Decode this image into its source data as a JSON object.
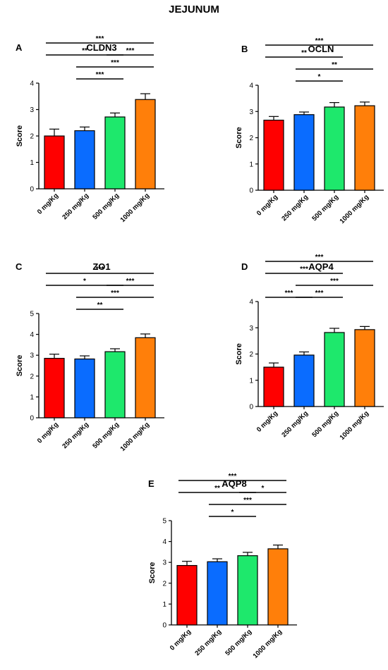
{
  "figure_title": "JEJUNUM",
  "colors": [
    "#ff0000",
    "#0a6cff",
    "#1ee86c",
    "#ff7f0a"
  ],
  "chart_data": [
    {
      "letter": "A",
      "title": "CLDN3",
      "type": "bar",
      "categories": [
        "0 mg/Kg",
        "250 mg/Kg",
        "500 mg/Kg",
        "1000 mg/Kg"
      ],
      "values": [
        2.0,
        2.2,
        2.72,
        3.38
      ],
      "errors": [
        0.26,
        0.14,
        0.15,
        0.22
      ],
      "ylabel": "Score",
      "ylim": [
        0,
        4
      ],
      "yticks": [
        0,
        1,
        2,
        3,
        4
      ],
      "significance": [
        {
          "from": 0,
          "to": 3,
          "level": 0,
          "label": "***"
        },
        {
          "from": 0,
          "to": 2,
          "level": 1,
          "label": "**"
        },
        {
          "from": 2,
          "to": 3,
          "level": 1,
          "label": "***"
        },
        {
          "from": 1,
          "to": 3,
          "level": 2,
          "label": "***"
        },
        {
          "from": 1,
          "to": 2,
          "level": 3,
          "label": "***"
        }
      ]
    },
    {
      "letter": "B",
      "title": "OCLN",
      "type": "bar",
      "categories": [
        "0 mg/Kg",
        "250 mg/Kg",
        "500 mg/Kg",
        "1000 mg/Kg"
      ],
      "values": [
        2.67,
        2.88,
        3.17,
        3.22
      ],
      "errors": [
        0.14,
        0.1,
        0.17,
        0.14
      ],
      "ylabel": "Score",
      "ylim": [
        0,
        4
      ],
      "yticks": [
        0,
        1,
        2,
        3,
        4
      ],
      "significance": [
        {
          "from": 0,
          "to": 3,
          "level": 0,
          "label": "***"
        },
        {
          "from": 0,
          "to": 2,
          "level": 1,
          "label": "**"
        },
        {
          "from": 1,
          "to": 3,
          "level": 2,
          "label": "**"
        },
        {
          "from": 1,
          "to": 2,
          "level": 3,
          "label": "*"
        }
      ]
    },
    {
      "letter": "C",
      "title": "ZO1",
      "type": "bar",
      "categories": [
        "0 mg/Kg",
        "250 mg/Kg",
        "500 mg/Kg",
        "1000 mg/Kg"
      ],
      "values": [
        2.85,
        2.82,
        3.17,
        3.84
      ],
      "errors": [
        0.2,
        0.15,
        0.14,
        0.18
      ],
      "ylabel": "Score",
      "ylim": [
        0,
        5
      ],
      "yticks": [
        0,
        1,
        2,
        3,
        4,
        5
      ],
      "significance": [
        {
          "from": 0,
          "to": 3,
          "level": 0,
          "label": "***"
        },
        {
          "from": 0,
          "to": 2,
          "level": 1,
          "label": "*"
        },
        {
          "from": 2,
          "to": 3,
          "level": 1,
          "label": "***"
        },
        {
          "from": 1,
          "to": 3,
          "level": 2,
          "label": "***"
        },
        {
          "from": 1,
          "to": 2,
          "level": 3,
          "label": "**"
        }
      ]
    },
    {
      "letter": "D",
      "title": "AQP4",
      "type": "bar",
      "categories": [
        "0 mg/Kg",
        "250 mg/Kg",
        "500 mg/Kg",
        "1000 mg/Kg"
      ],
      "values": [
        1.5,
        1.96,
        2.82,
        2.93
      ],
      "errors": [
        0.16,
        0.12,
        0.16,
        0.12
      ],
      "ylabel": "Score",
      "ylim": [
        0,
        4
      ],
      "yticks": [
        0,
        1,
        2,
        3,
        4
      ],
      "significance": [
        {
          "from": 0,
          "to": 3,
          "level": 0,
          "label": "***"
        },
        {
          "from": 0,
          "to": 2,
          "level": 1,
          "label": "***"
        },
        {
          "from": 1,
          "to": 3,
          "level": 2,
          "label": "***"
        },
        {
          "from": 0,
          "to": 1,
          "level": 3,
          "label": "***"
        },
        {
          "from": 1,
          "to": 2,
          "level": 3,
          "label": "***"
        }
      ]
    },
    {
      "letter": "E",
      "title": "AQP8",
      "type": "bar",
      "categories": [
        "0 mg/Kg",
        "250 mg/Kg",
        "500 mg/Kg",
        "1000 mg/Kg"
      ],
      "values": [
        2.85,
        3.03,
        3.32,
        3.65
      ],
      "errors": [
        0.2,
        0.14,
        0.16,
        0.18
      ],
      "ylabel": "Score",
      "ylim": [
        0,
        5
      ],
      "yticks": [
        0,
        1,
        2,
        3,
        4,
        5
      ],
      "significance": [
        {
          "from": 0,
          "to": 3,
          "level": 0,
          "label": "***"
        },
        {
          "from": 0,
          "to": 2,
          "level": 1,
          "label": "**"
        },
        {
          "from": 2,
          "to": 3,
          "level": 1,
          "label": "*"
        },
        {
          "from": 1,
          "to": 3,
          "level": 2,
          "label": "***"
        },
        {
          "from": 1,
          "to": 2,
          "level": 3,
          "label": "*"
        }
      ]
    }
  ]
}
